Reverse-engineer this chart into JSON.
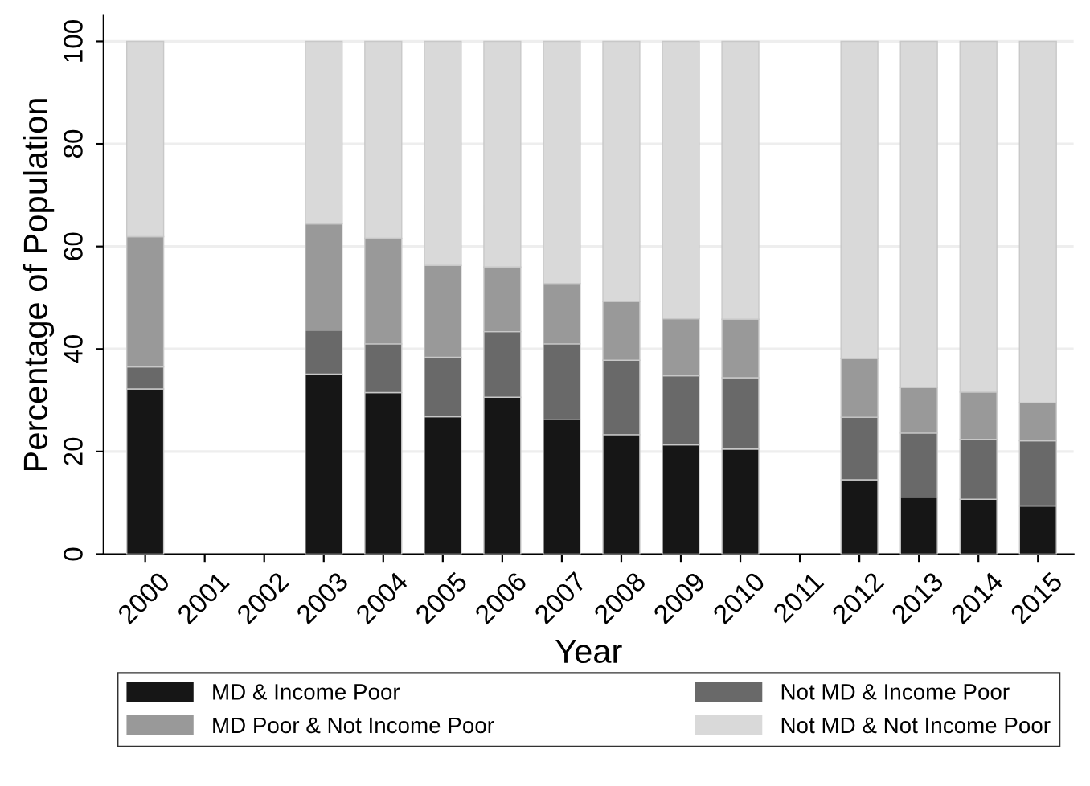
{
  "chart_data": {
    "type": "bar",
    "stacked": true,
    "xlabel": "Year",
    "ylabel": "Percentage of Population",
    "categories": [
      "2000",
      "2001",
      "2002",
      "2003",
      "2004",
      "2005",
      "2006",
      "2007",
      "2008",
      "2009",
      "2010",
      "2011",
      "2012",
      "2013",
      "2014",
      "2015"
    ],
    "series": [
      {
        "name": "MD & Income Poor",
        "color": "#161616",
        "values": [
          32.2,
          null,
          null,
          35.1,
          31.5,
          26.8,
          30.6,
          26.2,
          23.3,
          21.3,
          20.5,
          null,
          14.5,
          11.1,
          10.7,
          9.4
        ]
      },
      {
        "name": "Not MD & Income Poor",
        "color": "#696969",
        "values": [
          4.3,
          null,
          null,
          8.6,
          9.5,
          11.6,
          12.8,
          14.8,
          14.5,
          13.5,
          13.9,
          null,
          12.2,
          12.5,
          11.7,
          12.7
        ]
      },
      {
        "name": "MD Poor & Not Income Poor",
        "color": "#999999",
        "values": [
          25.4,
          null,
          null,
          20.7,
          20.6,
          17.9,
          12.6,
          11.8,
          11.5,
          11.1,
          11.4,
          null,
          11.4,
          8.9,
          9.2,
          7.4
        ]
      },
      {
        "name": "Not MD & Not Income Poor",
        "color": "#d9d9d9",
        "values": [
          38.1,
          null,
          null,
          35.6,
          38.4,
          43.7,
          44.0,
          47.2,
          50.7,
          54.1,
          54.2,
          null,
          61.9,
          67.5,
          68.4,
          70.5
        ]
      }
    ],
    "ylim": [
      0,
      105
    ],
    "yticks": [
      0,
      20,
      40,
      60,
      80,
      100
    ],
    "grid": "y",
    "legend": "bottom"
  }
}
